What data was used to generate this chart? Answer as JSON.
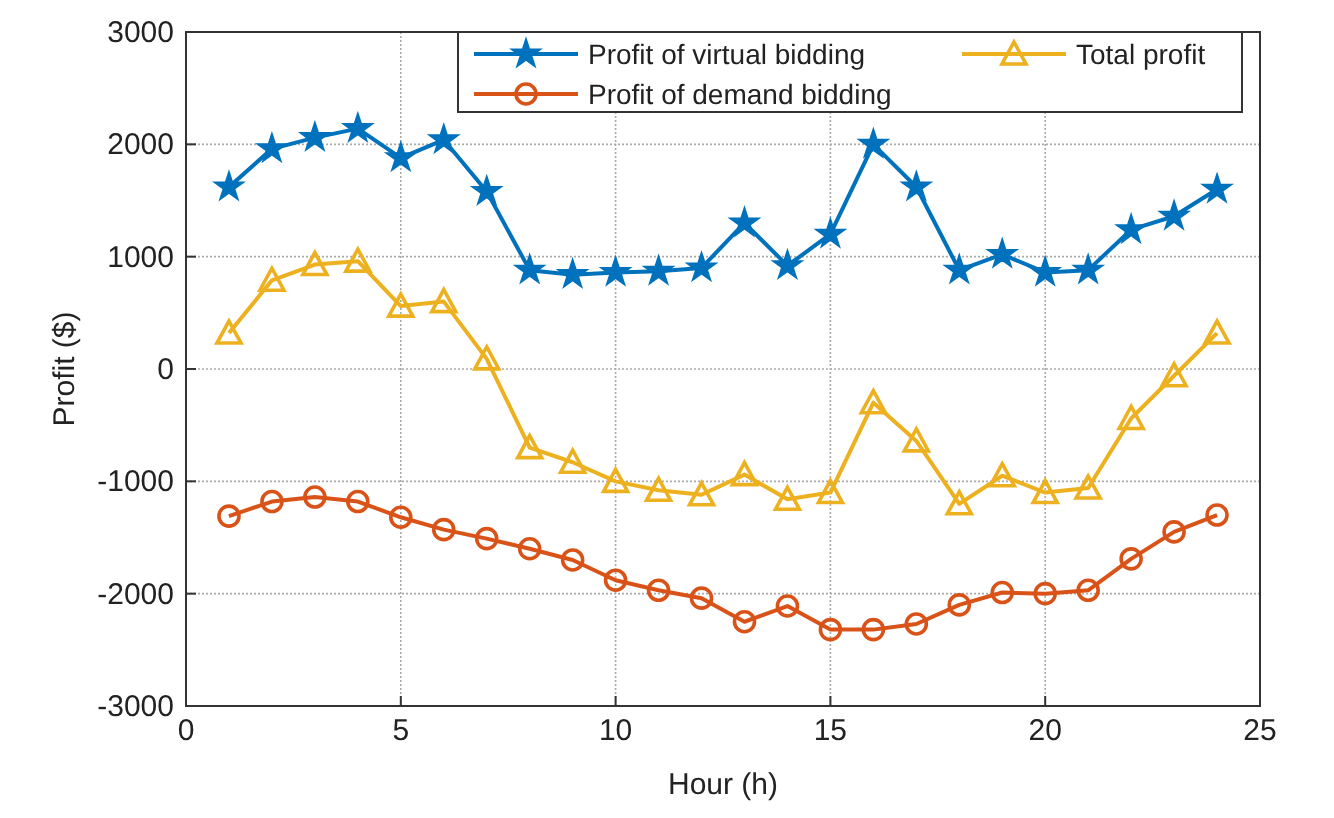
{
  "chart_data": {
    "type": "line",
    "xlabel": "Hour (h)",
    "ylabel": "Profit ($)",
    "x": [
      1,
      2,
      3,
      4,
      5,
      6,
      7,
      8,
      9,
      10,
      11,
      12,
      13,
      14,
      15,
      16,
      17,
      18,
      19,
      20,
      21,
      22,
      23,
      24
    ],
    "xlim": [
      0,
      25
    ],
    "xticks": [
      0,
      5,
      10,
      15,
      20,
      25
    ],
    "ylim": [
      -3000,
      3000
    ],
    "yticks": [
      -3000,
      -2000,
      -1000,
      0,
      1000,
      2000,
      3000
    ],
    "grid": true,
    "legend": "top right",
    "line_style": "solid",
    "series": [
      {
        "name": "Profit of virtual bidding",
        "color": "#0072bd",
        "marker": "star",
        "values": [
          1620,
          1960,
          2060,
          2140,
          1880,
          2040,
          1580,
          880,
          840,
          860,
          870,
          900,
          1300,
          920,
          1200,
          2000,
          1620,
          880,
          1020,
          860,
          880,
          1240,
          1360,
          1600
        ]
      },
      {
        "name": "Profit of demand bidding",
        "color": "#d95319",
        "marker": "circle",
        "values": [
          -1310,
          -1180,
          -1140,
          -1180,
          -1320,
          -1430,
          -1510,
          -1600,
          -1700,
          -1880,
          -1970,
          -2040,
          -2250,
          -2110,
          -2320,
          -2320,
          -2270,
          -2100,
          -1990,
          -2000,
          -1970,
          -1690,
          -1450,
          -1300
        ]
      },
      {
        "name": "Total profit",
        "color": "#edb120",
        "marker": "triangle",
        "values": [
          320,
          790,
          930,
          960,
          560,
          600,
          90,
          -700,
          -830,
          -1000,
          -1080,
          -1120,
          -940,
          -1160,
          -1100,
          -300,
          -640,
          -1200,
          -950,
          -1100,
          -1060,
          -440,
          -60,
          320
        ]
      }
    ]
  }
}
